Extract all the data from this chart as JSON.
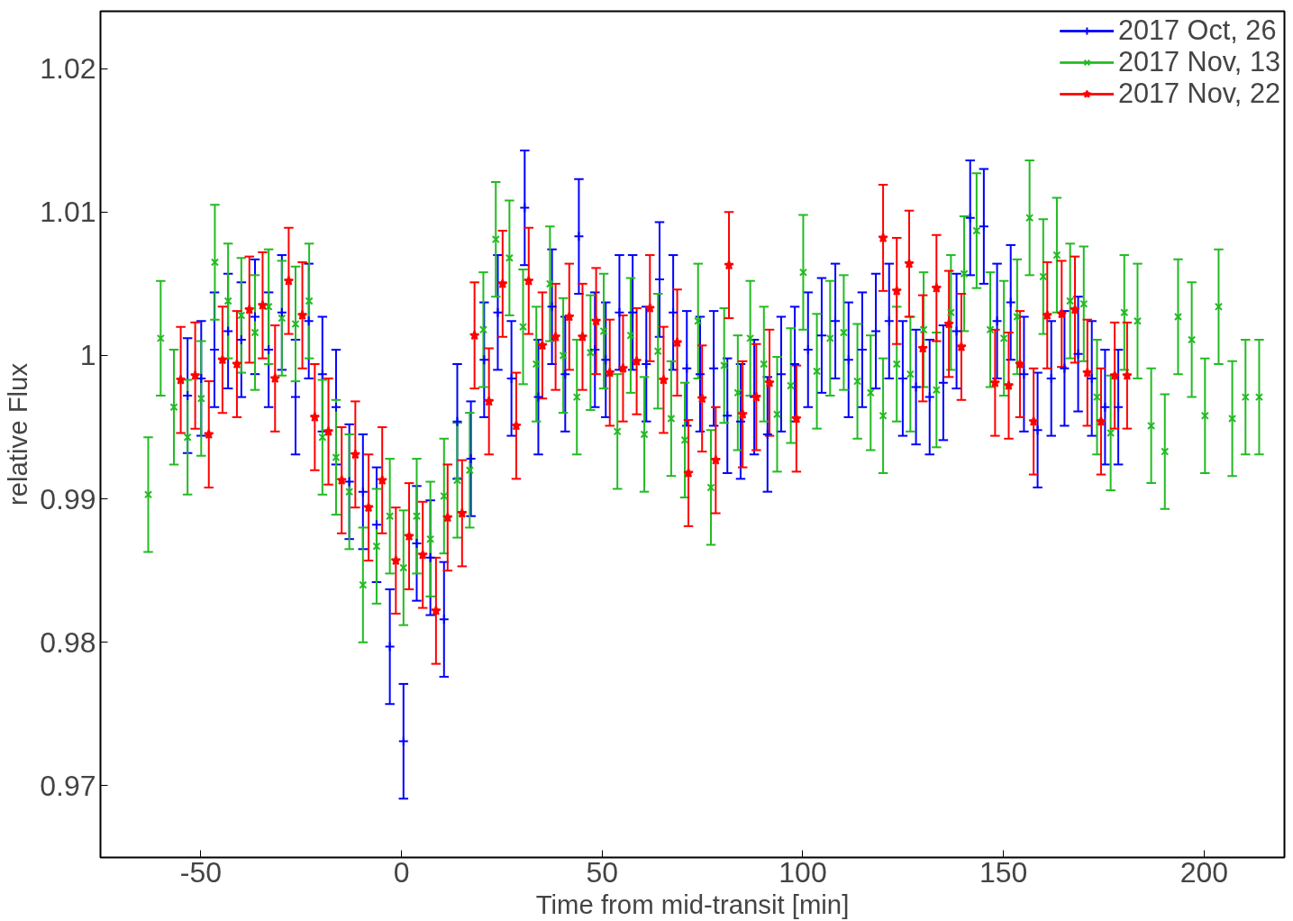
{
  "chart_data": {
    "type": "scatter",
    "xlabel": "Time from mid-transit [min]",
    "ylabel": "relative Flux",
    "xlim": [
      -75,
      220
    ],
    "ylim": [
      0.965,
      1.024
    ],
    "xticks": [
      -50,
      0,
      50,
      100,
      150,
      200
    ],
    "yticks": [
      0.97,
      0.98,
      0.99,
      1,
      1.01,
      1.02
    ],
    "grid": false,
    "legend": "top right",
    "series": [
      {
        "name": "2017 Oct, 26",
        "color": "#0000ff",
        "marker": "cross",
        "x": [
          -53.3,
          -49.9,
          -46.6,
          -43.2,
          -39.9,
          -36.5,
          -33.1,
          -29.8,
          -26.4,
          -23.1,
          -19.7,
          -16.3,
          -13.0,
          -9.6,
          -6.2,
          -2.9,
          0.5,
          3.8,
          7.2,
          10.6,
          13.9,
          17.3,
          20.6,
          24.0,
          27.4,
          30.7,
          34.1,
          37.5,
          40.8,
          44.2,
          48.2,
          50.9,
          54.3,
          57.6,
          61.0,
          64.3,
          67.7,
          71.1,
          74.4,
          77.8,
          81.2,
          84.5,
          87.9,
          91.2,
          94.6,
          98.0,
          101.3,
          104.7,
          108.1,
          111.4,
          114.8,
          118.2,
          121.5,
          124.9,
          128.2,
          131.6,
          135.0,
          138.3,
          141.7,
          145.1,
          148.4,
          151.8,
          155.1,
          158.5,
          161.9,
          165.2,
          168.6,
          172.0,
          175.3,
          178.6
        ],
        "values": [
          0.9972,
          0.9984,
          1.0004,
          1.0017,
          1.0011,
          1.0027,
          1.0004,
          1.003,
          0.9971,
          1.0024,
          0.9987,
          0.9964,
          0.9912,
          0.9905,
          0.9882,
          0.9797,
          0.9731,
          0.9869,
          0.9859,
          0.9816,
          0.9954,
          0.9928,
          0.9997,
          1.003,
          0.9984,
          1.0103,
          0.9971,
          1.0034,
          0.9987,
          1.0083,
          1.0004,
          0.9997,
          1.003,
          1.003,
          0.9994,
          1.0053,
          1.003,
          0.9991,
          0.9987,
          0.9991,
          0.9958,
          0.9954,
          0.9971,
          0.9945,
          0.9987,
          0.9994,
          1.0004,
          1.0014,
          1.0024,
          0.9997,
          1.0004,
          1.0017,
          1.0024,
          0.9984,
          0.9978,
          0.9971,
          0.9981,
          1.0017,
          1.0096,
          1.009,
          1.0024,
          1.0037,
          0.9987,
          0.9948,
          0.9984,
          0.9991,
          1.0001,
          0.9984,
          0.9964,
          0.9964
        ],
        "errors": [
          0.004,
          0.004,
          0.004,
          0.004,
          0.004,
          0.004,
          0.004,
          0.004,
          0.004,
          0.004,
          0.004,
          0.004,
          0.004,
          0.004,
          0.004,
          0.004,
          0.004,
          0.004,
          0.004,
          0.004,
          0.004,
          0.004,
          0.004,
          0.004,
          0.004,
          0.004,
          0.004,
          0.004,
          0.004,
          0.004,
          0.004,
          0.004,
          0.004,
          0.004,
          0.004,
          0.004,
          0.004,
          0.004,
          0.004,
          0.004,
          0.004,
          0.004,
          0.004,
          0.004,
          0.004,
          0.004,
          0.004,
          0.004,
          0.004,
          0.004,
          0.004,
          0.004,
          0.004,
          0.004,
          0.004,
          0.004,
          0.004,
          0.004,
          0.004,
          0.004,
          0.004,
          0.004,
          0.004,
          0.004,
          0.004,
          0.004,
          0.004,
          0.004,
          0.004,
          0.004
        ]
      },
      {
        "name": "2017 Nov, 13",
        "color": "#22bb22",
        "marker": "x",
        "x": [
          -63.1,
          -60.0,
          -56.7,
          -53.3,
          -49.9,
          -46.5,
          -43.2,
          -39.9,
          -36.5,
          -33.1,
          -29.8,
          -26.4,
          -23.0,
          -19.7,
          -16.3,
          -13.0,
          -9.6,
          -6.2,
          -2.9,
          0.5,
          3.8,
          7.2,
          10.6,
          13.9,
          17.0,
          20.4,
          23.5,
          26.9,
          30.3,
          33.6,
          37.0,
          40.3,
          43.7,
          47.1,
          50.4,
          53.8,
          57.1,
          60.5,
          63.9,
          67.2,
          70.6,
          73.9,
          77.1,
          80.4,
          83.8,
          86.9,
          90.3,
          93.6,
          97.0,
          100.1,
          103.5,
          106.8,
          110.2,
          113.6,
          116.9,
          120.0,
          123.4,
          126.8,
          130.1,
          133.3,
          136.9,
          140.2,
          143.3,
          146.7,
          150.1,
          153.4,
          156.5,
          159.9,
          163.3,
          166.6,
          170.0,
          173.3,
          176.7,
          180.1,
          183.4,
          186.8,
          190.2,
          193.5,
          196.9,
          200.2,
          203.6,
          207.0,
          210.3,
          213.7
        ],
        "values": [
          0.9903,
          1.0012,
          0.9964,
          0.9943,
          0.997,
          1.0065,
          1.0038,
          1.0028,
          1.0016,
          1.0034,
          1.0026,
          1.0022,
          1.0038,
          0.9943,
          0.9929,
          0.9905,
          0.984,
          0.9867,
          0.9888,
          0.9852,
          0.9888,
          0.9872,
          0.9902,
          0.9913,
          0.992,
          1.0018,
          1.0081,
          1.0068,
          1.002,
          0.9994,
          1.005,
          1.0,
          0.9971,
          1.0002,
          1.0017,
          0.9947,
          1.0014,
          0.9945,
          1.0003,
          0.9956,
          0.9941,
          1.0024,
          0.9908,
          0.9993,
          0.9974,
          1.0012,
          0.9994,
          0.9959,
          0.9979,
          1.0058,
          0.9989,
          1.0012,
          1.0016,
          0.9982,
          0.9974,
          0.9958,
          0.9994,
          0.9987,
          1.0018,
          0.9976,
          1.003,
          1.0057,
          1.0087,
          1.0018,
          1.0012,
          1.0027,
          1.0096,
          1.0055,
          1.007,
          1.0038,
          1.0036,
          0.9971,
          0.9946,
          1.003,
          1.0024,
          0.9951,
          0.9933,
          1.0027,
          1.0011,
          0.9958,
          1.0034,
          0.9956,
          0.9971,
          0.9971
        ],
        "errors": [
          0.004,
          0.004,
          0.004,
          0.004,
          0.004,
          0.004,
          0.004,
          0.004,
          0.004,
          0.004,
          0.004,
          0.004,
          0.004,
          0.004,
          0.004,
          0.004,
          0.004,
          0.004,
          0.004,
          0.004,
          0.004,
          0.004,
          0.004,
          0.004,
          0.004,
          0.004,
          0.004,
          0.004,
          0.004,
          0.004,
          0.004,
          0.004,
          0.004,
          0.004,
          0.004,
          0.004,
          0.004,
          0.004,
          0.004,
          0.004,
          0.004,
          0.004,
          0.004,
          0.004,
          0.004,
          0.004,
          0.004,
          0.004,
          0.004,
          0.004,
          0.004,
          0.004,
          0.004,
          0.004,
          0.004,
          0.004,
          0.004,
          0.004,
          0.004,
          0.004,
          0.004,
          0.004,
          0.004,
          0.004,
          0.004,
          0.004,
          0.004,
          0.004,
          0.004,
          0.004,
          0.004,
          0.004,
          0.004,
          0.004,
          0.004,
          0.004,
          0.004,
          0.004,
          0.004,
          0.004,
          0.004,
          0.004,
          0.004,
          0.004
        ]
      },
      {
        "name": "2017 Nov, 22",
        "color": "#ff0000",
        "marker": "star",
        "x": [
          -55.0,
          -51.4,
          -48.0,
          -44.6,
          -41.0,
          -37.9,
          -34.6,
          -31.5,
          -28.1,
          -24.7,
          -21.6,
          -18.2,
          -14.9,
          -11.5,
          -8.2,
          -4.8,
          -1.4,
          1.9,
          5.3,
          8.6,
          11.5,
          15.1,
          18.2,
          21.8,
          25.2,
          28.6,
          31.7,
          35.1,
          38.4,
          41.8,
          45.1,
          48.5,
          51.9,
          55.2,
          58.6,
          61.9,
          65.3,
          68.7,
          71.5,
          74.9,
          78.3,
          81.6,
          85.0,
          88.4,
          91.7,
          98.4,
          120.0,
          123.4,
          126.5,
          129.9,
          133.3,
          136.4,
          139.5,
          147.9,
          151.3,
          154.1,
          157.5,
          160.9,
          164.5,
          167.8,
          170.9,
          174.3,
          177.7,
          180.8
        ],
        "values": [
          0.9983,
          0.9986,
          0.9945,
          0.9997,
          0.9994,
          1.0032,
          1.0035,
          0.9984,
          1.0052,
          1.0028,
          0.9957,
          0.9947,
          0.9913,
          0.9931,
          0.9894,
          0.9913,
          0.9857,
          0.9874,
          0.9861,
          0.9822,
          0.9887,
          0.989,
          1.0014,
          0.9968,
          1.005,
          0.9951,
          1.0052,
          1.0007,
          1.0013,
          1.0027,
          1.0013,
          1.0024,
          0.9988,
          0.9991,
          0.9996,
          1.0033,
          0.9983,
          1.0009,
          0.9918,
          0.997,
          0.9927,
          1.0063,
          0.9959,
          0.9971,
          0.9981,
          0.9956,
          1.0082,
          1.0045,
          1.0064,
          1.0005,
          1.0047,
          1.0022,
          1.0006,
          0.9981,
          0.9979,
          0.9994,
          0.9954,
          1.0028,
          1.0029,
          1.0032,
          0.9988,
          0.9954,
          0.9986,
          0.9986
        ],
        "errors": [
          0.0037,
          0.0037,
          0.0037,
          0.0037,
          0.0037,
          0.0037,
          0.0037,
          0.0037,
          0.0037,
          0.0037,
          0.0037,
          0.0037,
          0.0037,
          0.0037,
          0.0037,
          0.0037,
          0.0037,
          0.0037,
          0.0037,
          0.0037,
          0.0037,
          0.0037,
          0.0037,
          0.0037,
          0.0037,
          0.0037,
          0.0037,
          0.0037,
          0.0037,
          0.0037,
          0.0037,
          0.0037,
          0.0037,
          0.0037,
          0.0037,
          0.0037,
          0.0037,
          0.0037,
          0.0037,
          0.0037,
          0.0037,
          0.0037,
          0.0037,
          0.0037,
          0.0037,
          0.0037,
          0.0037,
          0.0037,
          0.0037,
          0.0037,
          0.0037,
          0.0037,
          0.0037,
          0.0037,
          0.0037,
          0.0037,
          0.0037,
          0.0037,
          0.0037,
          0.0037,
          0.0037,
          0.0037,
          0.0037,
          0.0037
        ]
      }
    ]
  }
}
